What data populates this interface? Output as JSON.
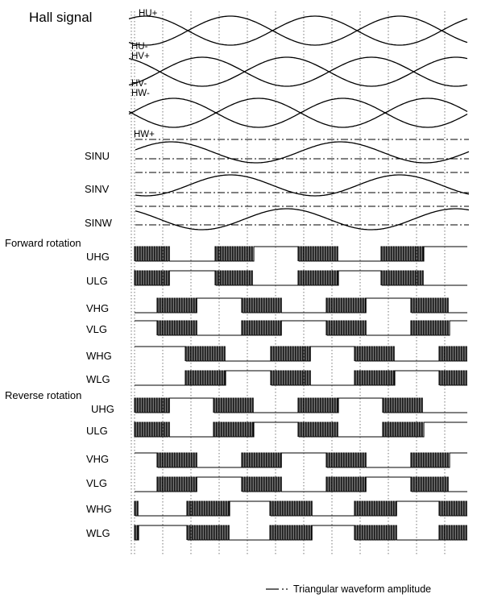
{
  "title": "Hall signal",
  "hall_labels": [
    "HU+",
    "HU-",
    "HV+",
    "HV-",
    "HW-",
    "HW+"
  ],
  "sine_labels": [
    "SINU",
    "SINV",
    "SINW"
  ],
  "forward": {
    "heading": "Forward rotation",
    "labels": [
      "UHG",
      "ULG",
      "VHG",
      "VLG",
      "WHG",
      "WLG"
    ]
  },
  "reverse": {
    "heading": "Reverse rotation",
    "labels": [
      "UHG",
      "ULG",
      "VHG",
      "VLG",
      "WHG",
      "WLG"
    ]
  },
  "legend": {
    "symbol": "— · ·",
    "text": "Triangular waveform amplitude"
  },
  "colors": {
    "line": "#000000",
    "background": "#ffffff"
  }
}
